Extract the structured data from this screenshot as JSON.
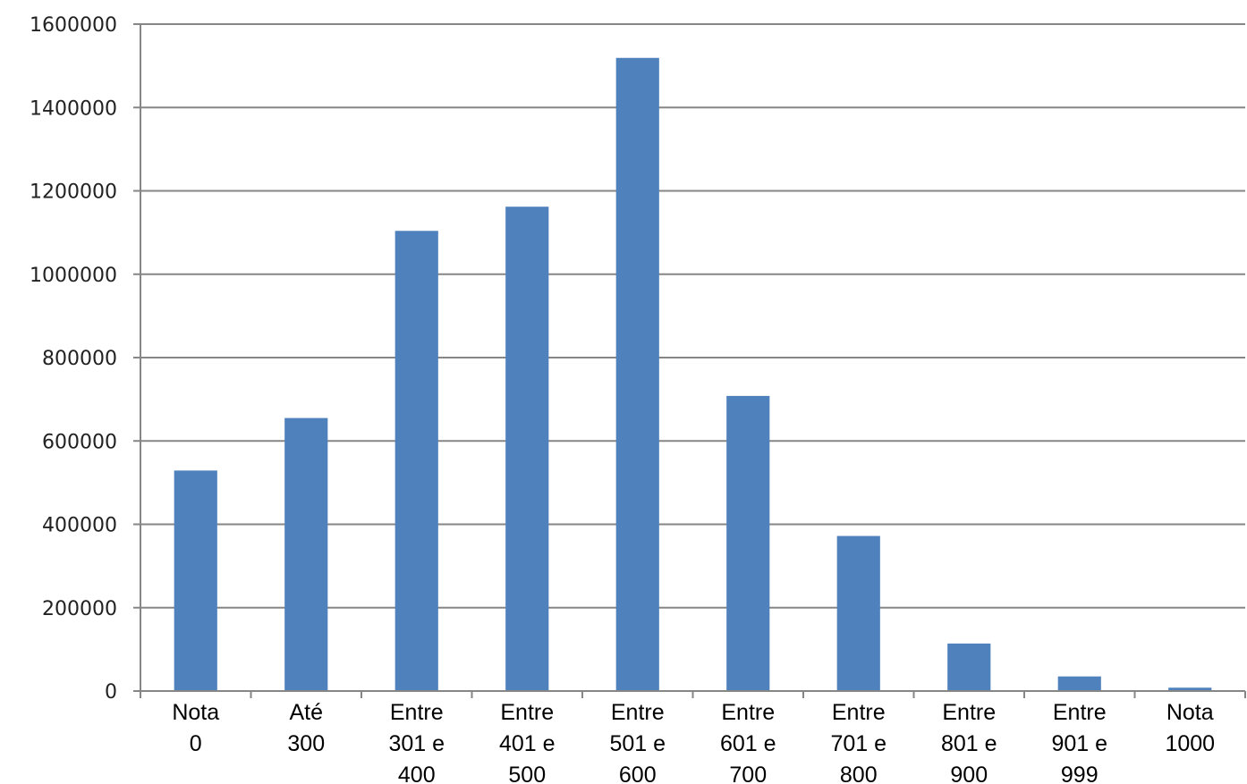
{
  "chart_data": {
    "type": "bar",
    "categories": [
      [
        "Nota",
        "0"
      ],
      [
        "Até",
        "300"
      ],
      [
        "Entre",
        "301 e",
        "400"
      ],
      [
        "Entre",
        "401 e",
        "500"
      ],
      [
        "Entre",
        "501 e",
        "600"
      ],
      [
        "Entre",
        "601 e",
        "700"
      ],
      [
        "Entre",
        "701 e",
        "800"
      ],
      [
        "Entre",
        "801 e",
        "900"
      ],
      [
        "Entre",
        "901 e",
        "999"
      ],
      [
        "Nota",
        "1000"
      ]
    ],
    "values": [
      529000,
      655000,
      1104000,
      1162000,
      1519000,
      708000,
      372000,
      114000,
      35000,
      8000
    ],
    "ylim": [
      0,
      1600000
    ],
    "yticks": [
      "0",
      "200000",
      "400000",
      "600000",
      "800000",
      "1000000",
      "1200000",
      "1400000",
      "1600000"
    ],
    "grid": true,
    "legend": "none",
    "colors": {
      "bar": "#4f81bd",
      "grid": "#868686",
      "axis": "#868686"
    }
  }
}
